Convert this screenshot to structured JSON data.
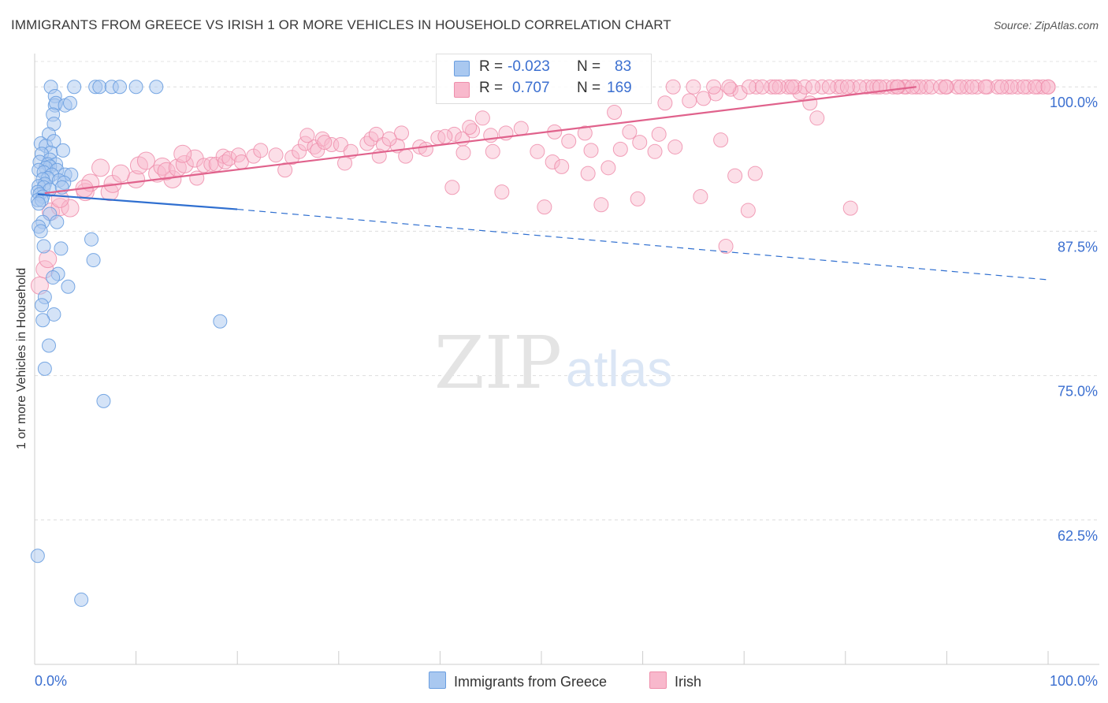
{
  "title": "IMMIGRANTS FROM GREECE VS IRISH 1 OR MORE VEHICLES IN HOUSEHOLD CORRELATION CHART",
  "source": "Source: ZipAtlas.com",
  "watermark": {
    "zip": "ZIP",
    "atlas": "atlas"
  },
  "legend": {
    "r_label": "R =",
    "n_label": "N =",
    "rows": [
      {
        "name": "Immigrants from Greece",
        "r": "-0.023",
        "n": "83"
      },
      {
        "name": "Irish",
        "r": "0.707",
        "n": "169"
      }
    ]
  },
  "colors": {
    "greece_fill": "#a9c8f0",
    "greece_stroke": "#6a9ee0",
    "greece_line": "#2f6fd0",
    "irish_fill": "#f8b8cc",
    "irish_stroke": "#ef8eab",
    "irish_line": "#e0628c",
    "tick_label": "#3b6fd0"
  },
  "chart_data": {
    "type": "scatter",
    "title": "IMMIGRANTS FROM GREECE VS IRISH 1 OR MORE VEHICLES IN HOUSEHOLD CORRELATION CHART",
    "xlabel": "",
    "ylabel": "1 or more Vehicles in Household",
    "xlim": [
      0,
      100
    ],
    "ylim": [
      50,
      102.2
    ],
    "x_tick_labels": [
      "0.0%",
      "100.0%"
    ],
    "y_ticks": [
      {
        "value": 100,
        "label": "100.0%"
      },
      {
        "value": 87.5,
        "label": "87.5%"
      },
      {
        "value": 75,
        "label": "75.0%"
      },
      {
        "value": 62.5,
        "label": "62.5%"
      }
    ],
    "series": [
      {
        "name": "Immigrants from Greece",
        "r": -0.023,
        "n": 83,
        "trend": {
          "x0": 0.3,
          "y0": 90.7,
          "x1": 20,
          "y1": 89.4,
          "dash_x1": 100,
          "dash_y1": 83.3
        },
        "points": [
          [
            1.6,
            100
          ],
          [
            3.9,
            100
          ],
          [
            6,
            100
          ],
          [
            6.4,
            100
          ],
          [
            7.6,
            100
          ],
          [
            8.4,
            100
          ],
          [
            10,
            100
          ],
          [
            12,
            100
          ],
          [
            2,
            99.2
          ],
          [
            2,
            98.4
          ],
          [
            2.1,
            98.6
          ],
          [
            3,
            98.4
          ],
          [
            3.5,
            98.6
          ],
          [
            1.8,
            97.6
          ],
          [
            1.9,
            96.8
          ],
          [
            1.4,
            95.9
          ],
          [
            0.6,
            95.1
          ],
          [
            1.1,
            94.9
          ],
          [
            1.9,
            95.3
          ],
          [
            1.6,
            94.3
          ],
          [
            2.8,
            94.5
          ],
          [
            0.7,
            94.2
          ],
          [
            1.5,
            93.7
          ],
          [
            0.5,
            93.5
          ],
          [
            1.3,
            93.3
          ],
          [
            2.1,
            93.3
          ],
          [
            1.5,
            93.1
          ],
          [
            1.1,
            93
          ],
          [
            2.2,
            92.8
          ],
          [
            0.4,
            92.8
          ],
          [
            0.9,
            92.6
          ],
          [
            1.7,
            92.4
          ],
          [
            3,
            92.4
          ],
          [
            3.6,
            92.4
          ],
          [
            1.3,
            92.1
          ],
          [
            0.8,
            92
          ],
          [
            2.4,
            91.9
          ],
          [
            2.9,
            91.7
          ],
          [
            1,
            91.6
          ],
          [
            0.4,
            91.4
          ],
          [
            0.9,
            91.3
          ],
          [
            1.5,
            91.1
          ],
          [
            2.7,
            91.3
          ],
          [
            0.3,
            90.9
          ],
          [
            0.5,
            90.7
          ],
          [
            0.8,
            90.5
          ],
          [
            0.3,
            90.2
          ],
          [
            0.7,
            90.2
          ],
          [
            0.4,
            89.9
          ],
          [
            1.5,
            89
          ],
          [
            0.8,
            88.3
          ],
          [
            2.2,
            88.3
          ],
          [
            0.4,
            87.9
          ],
          [
            0.6,
            87.5
          ],
          [
            5.6,
            86.8
          ],
          [
            2.6,
            86
          ],
          [
            0.9,
            86.2
          ],
          [
            5.8,
            85
          ],
          [
            2.3,
            83.8
          ],
          [
            1.8,
            83.5
          ],
          [
            3.3,
            82.7
          ],
          [
            1,
            81.8
          ],
          [
            0.7,
            81.1
          ],
          [
            1.9,
            80.3
          ],
          [
            0.8,
            79.8
          ],
          [
            18.3,
            79.7
          ],
          [
            1.4,
            77.6
          ],
          [
            1,
            75.6
          ],
          [
            6.8,
            72.8
          ],
          [
            0.3,
            59.4
          ],
          [
            4.6,
            55.6
          ]
        ]
      },
      {
        "name": "Irish",
        "r": 0.707,
        "n": 169,
        "trend": {
          "x0": 1,
          "y0": 90.8,
          "x1": 87,
          "y1": 100
        },
        "points": [
          [
            0.5,
            82.8
          ],
          [
            1,
            84.2
          ],
          [
            1.3,
            85.1
          ],
          [
            1.6,
            89.2
          ],
          [
            2.5,
            89.6
          ],
          [
            3.5,
            89.5
          ],
          [
            2.5,
            90.3
          ],
          [
            5,
            90.9
          ],
          [
            7.4,
            90.9
          ],
          [
            7.7,
            91.6
          ],
          [
            5.5,
            91.7
          ],
          [
            4.9,
            91.2
          ],
          [
            10,
            92
          ],
          [
            13.6,
            92
          ],
          [
            16,
            92.1
          ],
          [
            6.5,
            93
          ],
          [
            8.5,
            92.5
          ],
          [
            10.3,
            93.2
          ],
          [
            11,
            93.6
          ],
          [
            12.1,
            92.5
          ],
          [
            12.6,
            93.1
          ],
          [
            13,
            92.7
          ],
          [
            14.1,
            93
          ],
          [
            14.8,
            93.3
          ],
          [
            15.8,
            93.8
          ],
          [
            16.7,
            93.2
          ],
          [
            17.4,
            93.3
          ],
          [
            17.9,
            93.3
          ],
          [
            14.6,
            94.2
          ],
          [
            18.6,
            94
          ],
          [
            18.8,
            93.5
          ],
          [
            19.2,
            93.8
          ],
          [
            20.1,
            94.1
          ],
          [
            20.4,
            93.5
          ],
          [
            21.6,
            94
          ],
          [
            22.3,
            94.5
          ],
          [
            23.8,
            94.1
          ],
          [
            24.7,
            92.8
          ],
          [
            25.4,
            93.9
          ],
          [
            26.1,
            94.4
          ],
          [
            26.7,
            95.1
          ],
          [
            27.6,
            94.8
          ],
          [
            27.9,
            94.5
          ],
          [
            28.4,
            95.5
          ],
          [
            29.3,
            95
          ],
          [
            30.2,
            95
          ],
          [
            31.2,
            94.4
          ],
          [
            32.8,
            95.1
          ],
          [
            33.2,
            95.5
          ],
          [
            33.7,
            95.9
          ],
          [
            34.4,
            95
          ],
          [
            35.8,
            94.9
          ],
          [
            36.2,
            96
          ],
          [
            38,
            94.8
          ],
          [
            38.6,
            94.6
          ],
          [
            39.8,
            95.6
          ],
          [
            41.4,
            95.9
          ],
          [
            42.2,
            95.5
          ],
          [
            43.2,
            96.2
          ],
          [
            44.2,
            97.3
          ],
          [
            45,
            95.8
          ],
          [
            46.5,
            96
          ],
          [
            48,
            96.4
          ],
          [
            51.3,
            96.1
          ],
          [
            52.7,
            95.3
          ],
          [
            54.3,
            96
          ],
          [
            58.7,
            96.1
          ],
          [
            59.7,
            95.2
          ],
          [
            61.6,
            95.9
          ],
          [
            26.9,
            95.8
          ],
          [
            28.6,
            95.2
          ],
          [
            35,
            95.5
          ],
          [
            40.5,
            95.7
          ],
          [
            42.9,
            96.5
          ],
          [
            30.6,
            93.4
          ],
          [
            34,
            94
          ],
          [
            36.6,
            94
          ],
          [
            42.3,
            94.3
          ],
          [
            45.2,
            94.4
          ],
          [
            49.6,
            94.4
          ],
          [
            51.1,
            93.5
          ],
          [
            54.9,
            94.5
          ],
          [
            57.8,
            94.6
          ],
          [
            61.2,
            94.4
          ],
          [
            63.2,
            94.8
          ],
          [
            52,
            93.1
          ],
          [
            54.6,
            92.5
          ],
          [
            67.7,
            95.4
          ],
          [
            69.1,
            92.3
          ],
          [
            71.1,
            92.5
          ],
          [
            41.2,
            91.3
          ],
          [
            46.1,
            90.9
          ],
          [
            56.6,
            93
          ],
          [
            68.2,
            86.2
          ],
          [
            50.3,
            89.6
          ],
          [
            55.9,
            89.8
          ],
          [
            59.5,
            90.3
          ],
          [
            65.7,
            90.5
          ],
          [
            70.4,
            89.3
          ],
          [
            80.5,
            89.5
          ],
          [
            57.2,
            97.8
          ],
          [
            62.2,
            98.6
          ],
          [
            64.6,
            98.8
          ],
          [
            66,
            99
          ],
          [
            67.2,
            99.4
          ],
          [
            68.7,
            99.8
          ],
          [
            69.6,
            99.5
          ],
          [
            71.2,
            100
          ],
          [
            72.7,
            100
          ],
          [
            74.3,
            100
          ],
          [
            75.5,
            99.5
          ],
          [
            76.5,
            98.6
          ],
          [
            77.2,
            97.3
          ],
          [
            79.2,
            100
          ],
          [
            80.7,
            100
          ],
          [
            82.1,
            100
          ],
          [
            83.1,
            100
          ],
          [
            84,
            100
          ],
          [
            86,
            100
          ],
          [
            87,
            100
          ],
          [
            88,
            100
          ],
          [
            90,
            100
          ],
          [
            91,
            100
          ],
          [
            92,
            100
          ],
          [
            93,
            100
          ],
          [
            94,
            100
          ],
          [
            95,
            100
          ],
          [
            96,
            100
          ],
          [
            97,
            100
          ],
          [
            98,
            100
          ],
          [
            99,
            100
          ],
          [
            100,
            100
          ],
          [
            70.5,
            100
          ],
          [
            73.5,
            100
          ],
          [
            75,
            100
          ],
          [
            76,
            100
          ],
          [
            77.7,
            100
          ],
          [
            78.4,
            100
          ],
          [
            81.4,
            100
          ],
          [
            82.7,
            100
          ],
          [
            84.7,
            100
          ],
          [
            85.8,
            100
          ],
          [
            87.4,
            100
          ],
          [
            88.5,
            100
          ],
          [
            89.4,
            100
          ],
          [
            91.4,
            100
          ],
          [
            96.4,
            100
          ],
          [
            97.6,
            100
          ],
          [
            99.5,
            100
          ],
          [
            63,
            100
          ],
          [
            65,
            100
          ],
          [
            67,
            100
          ],
          [
            68.5,
            100
          ],
          [
            71.8,
            100
          ],
          [
            73.1,
            100
          ],
          [
            74.7,
            100
          ],
          [
            76.8,
            100
          ],
          [
            79.6,
            100
          ],
          [
            80.2,
            100
          ],
          [
            83.4,
            100
          ],
          [
            85.2,
            100
          ],
          [
            86.6,
            100
          ],
          [
            89.9,
            100
          ],
          [
            92.5,
            100
          ],
          [
            93.8,
            100
          ],
          [
            95.4,
            100
          ],
          [
            98.7,
            100
          ],
          [
            100,
            100
          ],
          [
            85.1,
            100
          ]
        ]
      }
    ]
  }
}
